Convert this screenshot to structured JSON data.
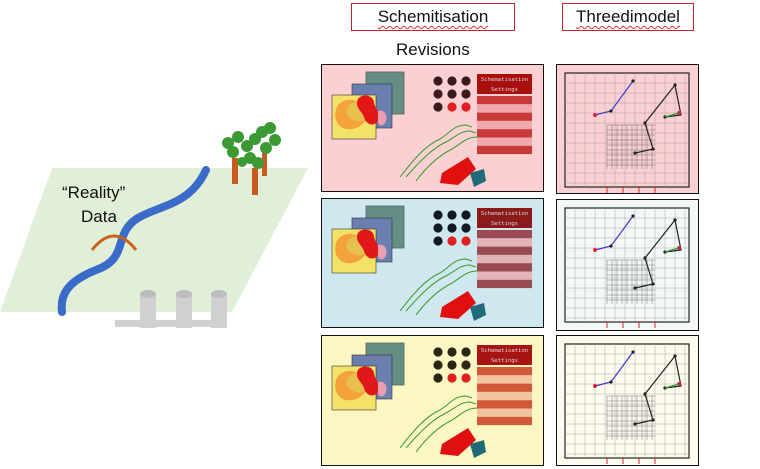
{
  "headers": {
    "schematisation": "Schemitisation",
    "threedimodel": "Threedimodel"
  },
  "revisions_label": "Revisions",
  "reality": {
    "label_line1": "“Reality”",
    "label_line2": "Data"
  },
  "settings_card": {
    "title": "Schematisation",
    "subtitle": "Settings"
  },
  "revisions": [
    {
      "bg": "#fbd0d3",
      "accent": "#a80f0f",
      "rows_dark": "#c83a3a",
      "rows_light": "#f0a9ad",
      "dot_dark": "#3a1a1a",
      "dot_red": "#e02020"
    },
    {
      "bg": "#cfe8ef",
      "accent": "#8b1a1a",
      "rows_dark": "#9a4a52",
      "rows_light": "#e2b4b8",
      "dot_dark": "#111a24",
      "dot_red": "#e02020"
    },
    {
      "bg": "#fbf6c2",
      "accent": "#a81414",
      "rows_dark": "#d2583a",
      "rows_light": "#f2c3a0",
      "dot_dark": "#2a2616",
      "dot_red": "#e02020"
    }
  ],
  "models": [
    {
      "bg": "#fbd0d3"
    },
    {
      "bg": "#f3f7f8"
    },
    {
      "bg": "#fdfaee"
    }
  ],
  "colors": {
    "river": "#3a6bc9",
    "ground": "#e2efd8",
    "bridge": "#c8641a",
    "tree_trunk": "#c85a1e",
    "tree_leaves": "#3c9a35",
    "header_border": "#c0272d"
  }
}
